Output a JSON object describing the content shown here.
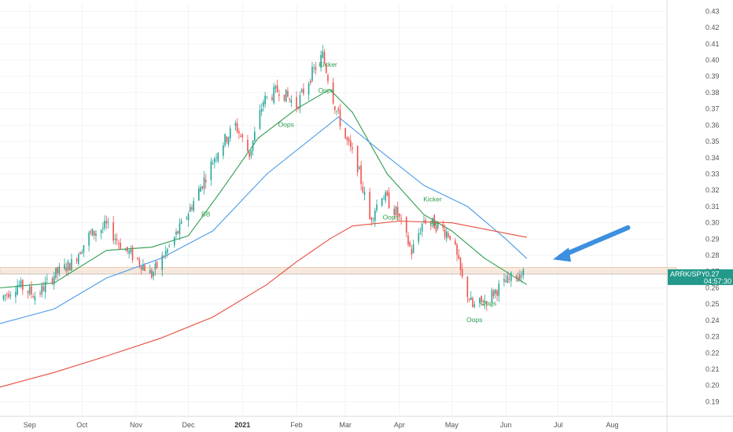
{
  "chart_data": {
    "type": "candlestick",
    "symbol_label": "ARRK/SPY",
    "last_value_label": "0.27",
    "countdown_label": "04:57:30",
    "y_ticks": [
      "0.43",
      "0.42",
      "0.41",
      "0.40",
      "0.39",
      "0.38",
      "0.37",
      "0.36",
      "0.35",
      "0.34",
      "0.33",
      "0.32",
      "0.31",
      "0.30",
      "0.29",
      "0.28",
      "0.27",
      "0.26",
      "0.25",
      "0.24",
      "0.23",
      "0.22",
      "0.21",
      "0.20",
      "0.19"
    ],
    "ylim": [
      0.182,
      0.435
    ],
    "x_ticks": [
      {
        "label": "Sep",
        "date": "2020-09-01",
        "bold": false
      },
      {
        "label": "Oct",
        "date": "2020-10-01",
        "bold": false
      },
      {
        "label": "Nov",
        "date": "2020-11-01",
        "bold": false
      },
      {
        "label": "Dec",
        "date": "2020-12-01",
        "bold": false
      },
      {
        "label": "2021",
        "date": "2021-01-01",
        "bold": true
      },
      {
        "label": "Feb",
        "date": "2021-02-01",
        "bold": false
      },
      {
        "label": "Mar",
        "date": "2021-03-01",
        "bold": false
      },
      {
        "label": "Apr",
        "date": "2021-04-01",
        "bold": false
      },
      {
        "label": "May",
        "date": "2021-05-01",
        "bold": false
      },
      {
        "label": "Jun",
        "date": "2021-06-01",
        "bold": false
      },
      {
        "label": "Jul",
        "date": "2021-07-01",
        "bold": false
      },
      {
        "label": "Aug",
        "date": "2021-08-01",
        "bold": false
      }
    ],
    "xlim": [
      "2020-08-15",
      "2021-08-31"
    ],
    "price_path": [
      [
        "2020-08-15",
        0.253
      ],
      [
        "2020-08-25",
        0.262
      ],
      [
        "2020-09-05",
        0.255
      ],
      [
        "2020-09-15",
        0.268
      ],
      [
        "2020-09-25",
        0.275
      ],
      [
        "2020-10-05",
        0.292
      ],
      [
        "2020-10-15",
        0.298
      ],
      [
        "2020-10-25",
        0.284
      ],
      [
        "2020-11-03",
        0.276
      ],
      [
        "2020-11-10",
        0.268
      ],
      [
        "2020-11-20",
        0.285
      ],
      [
        "2020-11-28",
        0.3
      ],
      [
        "2020-12-08",
        0.322
      ],
      [
        "2020-12-18",
        0.345
      ],
      [
        "2020-12-28",
        0.36
      ],
      [
        "2021-01-05",
        0.342
      ],
      [
        "2021-01-13",
        0.375
      ],
      [
        "2021-01-22",
        0.382
      ],
      [
        "2021-02-01",
        0.372
      ],
      [
        "2021-02-10",
        0.392
      ],
      [
        "2021-02-16",
        0.403
      ],
      [
        "2021-02-23",
        0.372
      ],
      [
        "2021-03-01",
        0.352
      ],
      [
        "2021-03-08",
        0.335
      ],
      [
        "2021-03-15",
        0.302
      ],
      [
        "2021-03-22",
        0.318
      ],
      [
        "2021-03-31",
        0.305
      ],
      [
        "2021-04-08",
        0.282
      ],
      [
        "2021-04-15",
        0.302
      ],
      [
        "2021-04-23",
        0.298
      ],
      [
        "2021-05-01",
        0.292
      ],
      [
        "2021-05-07",
        0.265
      ],
      [
        "2021-05-13",
        0.248
      ],
      [
        "2021-05-20",
        0.252
      ],
      [
        "2021-05-28",
        0.26
      ],
      [
        "2021-06-07",
        0.268
      ],
      [
        "2021-06-13",
        0.269
      ]
    ],
    "series": [
      {
        "color": "#2e9e4f",
        "points": [
          [
            "2020-08-15",
            0.26
          ],
          [
            "2020-09-15",
            0.263
          ],
          [
            "2020-10-15",
            0.283
          ],
          [
            "2020-11-10",
            0.285
          ],
          [
            "2020-12-01",
            0.292
          ],
          [
            "2020-12-20",
            0.32
          ],
          [
            "2021-01-10",
            0.352
          ],
          [
            "2021-02-01",
            0.37
          ],
          [
            "2021-02-20",
            0.382
          ],
          [
            "2021-03-05",
            0.368
          ],
          [
            "2021-03-25",
            0.33
          ],
          [
            "2021-04-15",
            0.305
          ],
          [
            "2021-05-01",
            0.295
          ],
          [
            "2021-05-20",
            0.278
          ],
          [
            "2021-06-13",
            0.262
          ]
        ]
      },
      {
        "color": "#4a9be8",
        "points": [
          [
            "2020-08-15",
            0.238
          ],
          [
            "2020-09-15",
            0.247
          ],
          [
            "2020-10-15",
            0.266
          ],
          [
            "2020-11-15",
            0.278
          ],
          [
            "2020-12-15",
            0.295
          ],
          [
            "2021-01-15",
            0.33
          ],
          [
            "2021-02-25",
            0.365
          ],
          [
            "2021-03-20",
            0.345
          ],
          [
            "2021-04-15",
            0.323
          ],
          [
            "2021-05-10",
            0.31
          ],
          [
            "2021-06-01",
            0.29
          ],
          [
            "2021-06-13",
            0.278
          ]
        ]
      },
      {
        "color": "#e84c3d",
        "points": [
          [
            "2020-08-15",
            0.199
          ],
          [
            "2020-09-15",
            0.208
          ],
          [
            "2020-10-15",
            0.218
          ],
          [
            "2020-11-15",
            0.229
          ],
          [
            "2020-12-15",
            0.242
          ],
          [
            "2021-01-15",
            0.262
          ],
          [
            "2021-02-01",
            0.276
          ],
          [
            "2021-02-20",
            0.29
          ],
          [
            "2021-03-05",
            0.298
          ],
          [
            "2021-04-01",
            0.301
          ],
          [
            "2021-05-01",
            0.3
          ],
          [
            "2021-06-13",
            0.291
          ]
        ]
      }
    ],
    "price_line_value": 0.2685,
    "zone": [
      0.2685,
      0.2725
    ],
    "annotations": [
      {
        "text": "Kicker",
        "date": "2021-02-19",
        "value": 0.396
      },
      {
        "text": "Oops",
        "date": "2021-02-18",
        "value": 0.38
      },
      {
        "text": "Oops",
        "date": "2021-01-26",
        "value": 0.359
      },
      {
        "text": "BB",
        "date": "2020-12-11",
        "value": 0.304
      },
      {
        "text": "Oops",
        "date": "2021-03-27",
        "value": 0.302
      },
      {
        "text": "Kicker",
        "date": "2021-04-20",
        "value": 0.313
      },
      {
        "text": "BB",
        "date": "2021-04-21",
        "value": 0.298
      },
      {
        "text": "Oops",
        "date": "2021-05-22",
        "value": 0.249
      },
      {
        "text": "Oops",
        "date": "2021-05-14",
        "value": 0.239
      }
    ],
    "arrow_color": "#3d8fe0",
    "up_color": "#26a69a",
    "down_color": "#ef5350",
    "badge_color": "#22998a"
  }
}
